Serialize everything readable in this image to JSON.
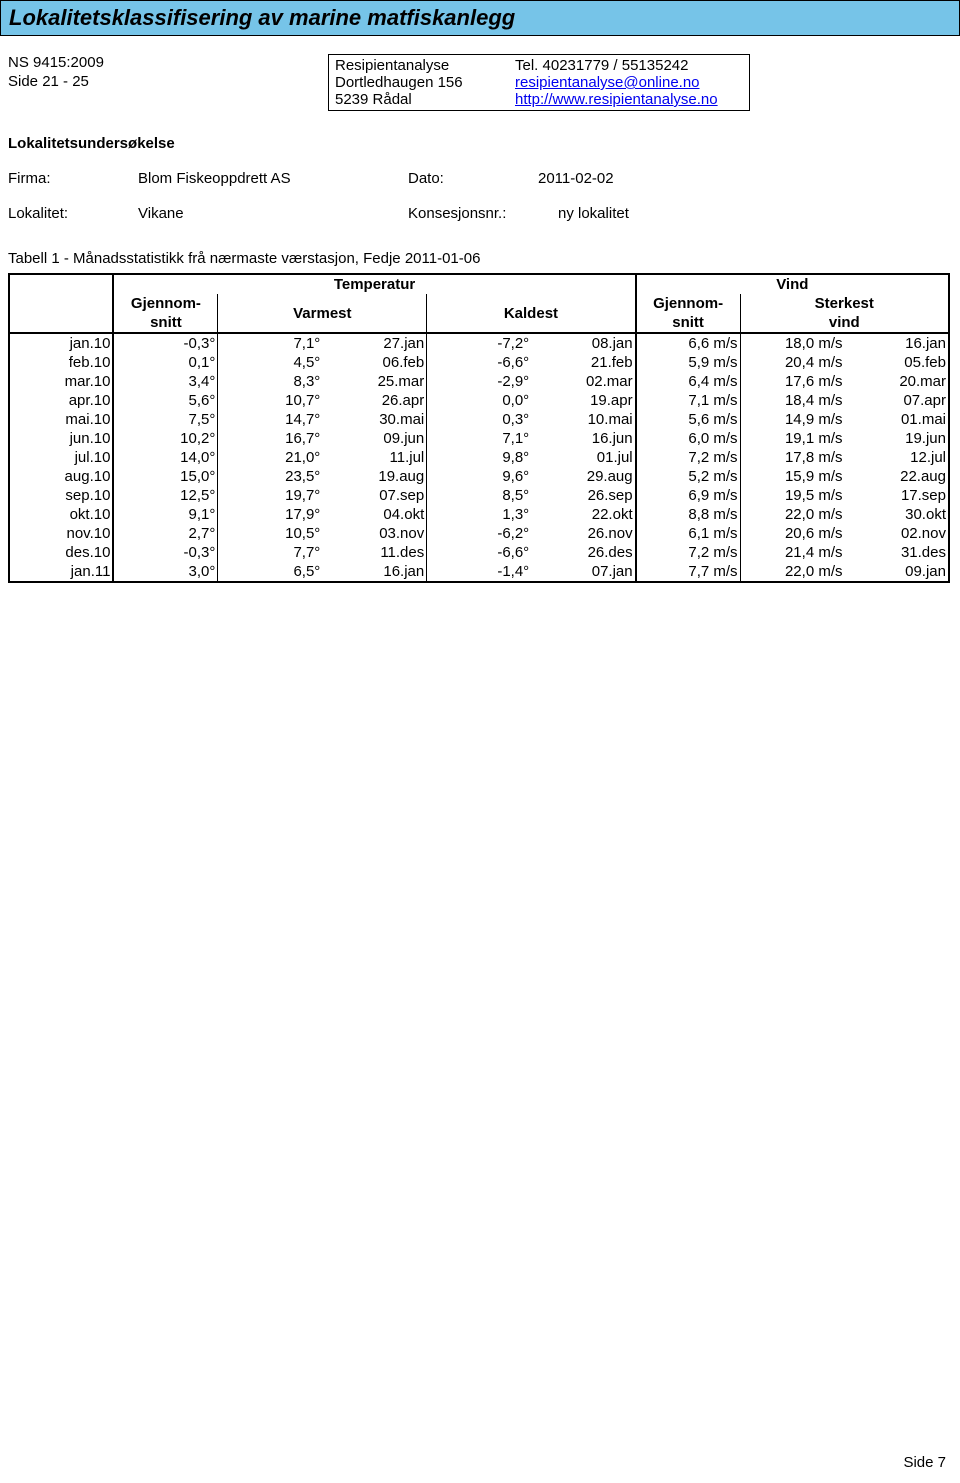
{
  "header": {
    "title": "Lokalitetsklassifisering av marine matfiskanlegg"
  },
  "leftcol": {
    "line1": "NS 9415:2009",
    "line2": "Side 21 - 25"
  },
  "box": {
    "r1c1": "Resipientanalyse",
    "r1c2": "Tel. 40231779 / 55135242",
    "r2c1": "Dortledhaugen 156",
    "r2c2": "resipientanalyse@online.no",
    "r3c1": "5239 Rådal",
    "r3c2": "http://www.resipientanalyse.no"
  },
  "section_label": "Lokalitetsundersøkelse",
  "meta": {
    "firma_lbl": "Firma:",
    "firma_val": "Blom Fiskeoppdrett AS",
    "dato_lbl": "Dato:",
    "dato_val": "2011-02-02",
    "lokalitet_lbl": "Lokalitet:",
    "lokalitet_val": "Vikane",
    "konsesjon_lbl": "Konsesjonsnr.:",
    "konsesjon_val": "ny lokalitet"
  },
  "table_caption": "Tabell 1 - Månadsstatistikk frå nærmaste værstasjon, Fedje 2011-01-06",
  "headers": {
    "temperatur": "Temperatur",
    "vind": "Vind",
    "gjennomsnitt": "Gjennom-\nsnitt",
    "gjennom_a": "Gjennom-",
    "snitt": "snitt",
    "varmest": "Varmest",
    "kaldest": "Kaldest",
    "sterkest_a": "Sterkest",
    "sterkest_b": "vind"
  },
  "rows": [
    {
      "m": "jan.10",
      "avg": "-0,3°",
      "warm": "7,1°",
      "warm_d": "27.jan",
      "cold": "-7,2°",
      "cold_d": "08.jan",
      "wavg": "6,6 m/s",
      "wmax": "18,0 m/s",
      "wday": "16.jan"
    },
    {
      "m": "feb.10",
      "avg": "0,1°",
      "warm": "4,5°",
      "warm_d": "06.feb",
      "cold": "-6,6°",
      "cold_d": "21.feb",
      "wavg": "5,9 m/s",
      "wmax": "20,4 m/s",
      "wday": "05.feb"
    },
    {
      "m": "mar.10",
      "avg": "3,4°",
      "warm": "8,3°",
      "warm_d": "25.mar",
      "cold": "-2,9°",
      "cold_d": "02.mar",
      "wavg": "6,4 m/s",
      "wmax": "17,6 m/s",
      "wday": "20.mar"
    },
    {
      "m": "apr.10",
      "avg": "5,6°",
      "warm": "10,7°",
      "warm_d": "26.apr",
      "cold": "0,0°",
      "cold_d": "19.apr",
      "wavg": "7,1 m/s",
      "wmax": "18,4 m/s",
      "wday": "07.apr"
    },
    {
      "m": "mai.10",
      "avg": "7,5°",
      "warm": "14,7°",
      "warm_d": "30.mai",
      "cold": "0,3°",
      "cold_d": "10.mai",
      "wavg": "5,6 m/s",
      "wmax": "14,9 m/s",
      "wday": "01.mai"
    },
    {
      "m": "jun.10",
      "avg": "10,2°",
      "warm": "16,7°",
      "warm_d": "09.jun",
      "cold": "7,1°",
      "cold_d": "16.jun",
      "wavg": "6,0 m/s",
      "wmax": "19,1 m/s",
      "wday": "19.jun"
    },
    {
      "m": "jul.10",
      "avg": "14,0°",
      "warm": "21,0°",
      "warm_d": "11.jul",
      "cold": "9,8°",
      "cold_d": "01.jul",
      "wavg": "7,2 m/s",
      "wmax": "17,8 m/s",
      "wday": "12.jul"
    },
    {
      "m": "aug.10",
      "avg": "15,0°",
      "warm": "23,5°",
      "warm_d": "19.aug",
      "cold": "9,6°",
      "cold_d": "29.aug",
      "wavg": "5,2 m/s",
      "wmax": "15,9 m/s",
      "wday": "22.aug"
    },
    {
      "m": "sep.10",
      "avg": "12,5°",
      "warm": "19,7°",
      "warm_d": "07.sep",
      "cold": "8,5°",
      "cold_d": "26.sep",
      "wavg": "6,9 m/s",
      "wmax": "19,5 m/s",
      "wday": "17.sep"
    },
    {
      "m": "okt.10",
      "avg": "9,1°",
      "warm": "17,9°",
      "warm_d": "04.okt",
      "cold": "1,3°",
      "cold_d": "22.okt",
      "wavg": "8,8 m/s",
      "wmax": "22,0 m/s",
      "wday": "30.okt"
    },
    {
      "m": "nov.10",
      "avg": "2,7°",
      "warm": "10,5°",
      "warm_d": "03.nov",
      "cold": "-6,2°",
      "cold_d": "26.nov",
      "wavg": "6,1 m/s",
      "wmax": "20,6 m/s",
      "wday": "02.nov"
    },
    {
      "m": "des.10",
      "avg": "-0,3°",
      "warm": "7,7°",
      "warm_d": "11.des",
      "cold": "-6,6°",
      "cold_d": "26.des",
      "wavg": "7,2 m/s",
      "wmax": "21,4 m/s",
      "wday": "31.des"
    },
    {
      "m": "jan.11",
      "avg": "3,0°",
      "warm": "6,5°",
      "warm_d": "16.jan",
      "cold": "-1,4°",
      "cold_d": "07.jan",
      "wavg": "7,7 m/s",
      "wmax": "22,0 m/s",
      "wday": "09.jan"
    }
  ],
  "footer": "Side 7",
  "colors": {
    "header_bg": "#76c4e8",
    "border": "#000000",
    "link": "#0000ee",
    "background": "#ffffff"
  }
}
